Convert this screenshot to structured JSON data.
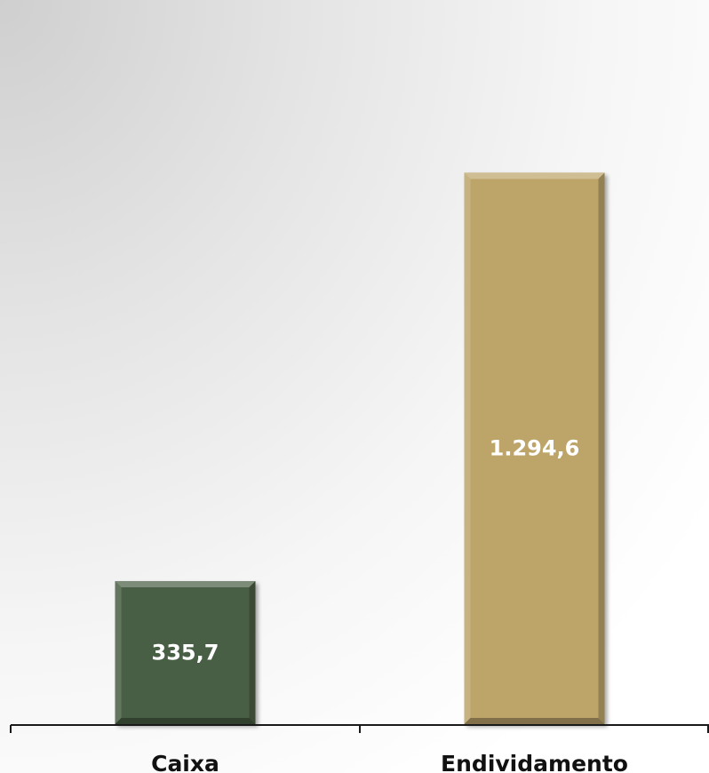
{
  "chart_data": {
    "type": "bar",
    "title": "",
    "xlabel": "",
    "ylabel": "",
    "categories": [
      "Caixa",
      "Endividamento"
    ],
    "values": [
      335.7,
      1294.6
    ],
    "value_labels": [
      "335,7",
      "1.294,6"
    ],
    "bar_colors": [
      "#4a5e45",
      "#bda56b"
    ],
    "ylim": [
      0,
      1700
    ],
    "grid": false,
    "legend": "none"
  }
}
